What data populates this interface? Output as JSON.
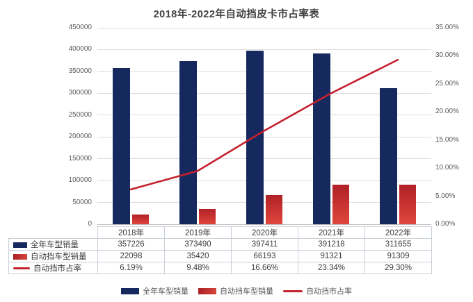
{
  "title": "2018年-2022年自动挡皮卡市占率表",
  "colors": {
    "navy_bar": "#16295e",
    "red_bar": "#d0342f",
    "line": "#c4212d",
    "grid": "#dcdcdc",
    "axis_text": "#595959",
    "table_border": "#c9cfd8"
  },
  "chart_data": {
    "type": "bar",
    "subtype": "bar+line combo, line on secondary axis",
    "categories": [
      "2018年",
      "2019年",
      "2020年",
      "2021年",
      "2022年"
    ],
    "series": [
      {
        "name": "全年车型销量",
        "type": "bar",
        "axis": "left",
        "color": "#16295e",
        "values": [
          357226,
          373490,
          397411,
          391218,
          311655
        ]
      },
      {
        "name": "自动挡车型销量",
        "type": "bar",
        "axis": "left",
        "color": "#d0342f",
        "values": [
          22098,
          35420,
          66193,
          91321,
          91309
        ]
      },
      {
        "name": "自动挡市占率",
        "type": "line",
        "axis": "right",
        "color": "#c4212d",
        "values": [
          6.19,
          9.48,
          16.66,
          23.34,
          29.3
        ],
        "display_values": [
          "6.19%",
          "9.48%",
          "16.66%",
          "23.34%",
          "29.30%"
        ]
      }
    ],
    "title": "2018年-2022年自动挡皮卡市占率表",
    "xlabel": "",
    "ylabel": "",
    "left_axis": {
      "min": 0,
      "max": 450000,
      "step": 50000,
      "ticks": [
        "0",
        "50000",
        "100000",
        "150000",
        "200000",
        "250000",
        "300000",
        "350000",
        "400000",
        "450000"
      ]
    },
    "right_axis": {
      "min": 0,
      "max": 35,
      "step": 5,
      "ticks": [
        "0.00%",
        "5.00%",
        "10.00%",
        "15.00%",
        "20.00%",
        "25.00%",
        "30.00%",
        "35.00%"
      ]
    },
    "grid": true,
    "legend_position": "bottom"
  },
  "table": {
    "corner_label": "",
    "column_headers": [
      "2018年",
      "2019年",
      "2020年",
      "2021年",
      "2022年"
    ],
    "rows": [
      {
        "label": "全年车型销量",
        "swatch": "bar-navy",
        "values": [
          "357226",
          "373490",
          "397411",
          "391218",
          "311655"
        ]
      },
      {
        "label": "自动挡车型销量",
        "swatch": "bar-red",
        "values": [
          "22098",
          "35420",
          "66193",
          "91321",
          "91309"
        ]
      },
      {
        "label": "自动挡市占率",
        "swatch": "line-red",
        "values": [
          "6.19%",
          "9.48%",
          "16.66%",
          "23.34%",
          "29.30%"
        ]
      }
    ]
  },
  "legend": {
    "items": [
      {
        "label": "全年车型销量",
        "swatch": "bar-navy"
      },
      {
        "label": "自动挡车型销量",
        "swatch": "bar-red"
      },
      {
        "label": "自动挡市占率",
        "swatch": "line-red"
      }
    ]
  }
}
